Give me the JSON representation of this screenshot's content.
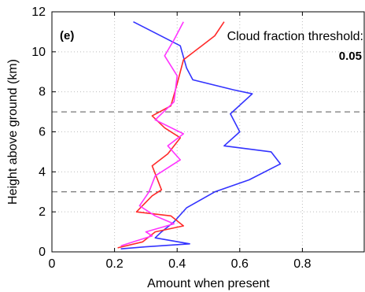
{
  "chart_data": {
    "type": "line",
    "panel_label": "(e)",
    "annotation_line1": "Cloud fraction threshold:",
    "annotation_value": "0.05",
    "xlabel": "Amount when present",
    "ylabel": "Height above ground (km)",
    "xlim": [
      0,
      1
    ],
    "ylim": [
      0,
      12
    ],
    "xticks": [
      0,
      0.2,
      0.4,
      0.6,
      0.8
    ],
    "xtick_labels": [
      "0",
      "0.2",
      "0.4",
      "0.6",
      "0.8"
    ],
    "yticks": [
      0,
      2,
      4,
      6,
      8,
      10,
      12
    ],
    "ytick_labels": [
      "0",
      "2",
      "4",
      "6",
      "8",
      "10",
      "12"
    ],
    "grid": true,
    "reference_lines_km": [
      3,
      7
    ],
    "series": [
      {
        "color": "#3333ff",
        "points": [
          [
            0.26,
            11.5
          ],
          [
            0.41,
            10.3
          ],
          [
            0.43,
            9.2
          ],
          [
            0.45,
            8.6
          ],
          [
            0.58,
            8.1
          ],
          [
            0.64,
            7.9
          ],
          [
            0.57,
            6.9
          ],
          [
            0.6,
            6.0
          ],
          [
            0.55,
            5.3
          ],
          [
            0.7,
            5.0
          ],
          [
            0.73,
            4.4
          ],
          [
            0.63,
            3.6
          ],
          [
            0.52,
            3.0
          ],
          [
            0.43,
            2.2
          ],
          [
            0.39,
            1.5
          ],
          [
            0.35,
            1.0
          ],
          [
            0.33,
            0.7
          ],
          [
            0.44,
            0.4
          ],
          [
            0.3,
            0.25
          ],
          [
            0.22,
            0.15
          ]
        ]
      },
      {
        "color": "#ff2a2a",
        "points": [
          [
            0.55,
            11.5
          ],
          [
            0.52,
            10.8
          ],
          [
            0.47,
            10.2
          ],
          [
            0.42,
            9.6
          ],
          [
            0.4,
            8.4
          ],
          [
            0.38,
            7.3
          ],
          [
            0.32,
            6.8
          ],
          [
            0.36,
            6.2
          ],
          [
            0.41,
            5.7
          ],
          [
            0.37,
            4.9
          ],
          [
            0.32,
            4.3
          ],
          [
            0.35,
            3.1
          ],
          [
            0.32,
            2.8
          ],
          [
            0.27,
            2.0
          ],
          [
            0.38,
            1.8
          ],
          [
            0.42,
            1.3
          ],
          [
            0.33,
            1.0
          ],
          [
            0.29,
            0.5
          ],
          [
            0.21,
            0.2
          ]
        ]
      },
      {
        "color": "#ff33ff",
        "points": [
          [
            0.42,
            11.5
          ],
          [
            0.39,
            10.6
          ],
          [
            0.36,
            9.8
          ],
          [
            0.4,
            8.8
          ],
          [
            0.39,
            7.5
          ],
          [
            0.33,
            6.6
          ],
          [
            0.42,
            5.9
          ],
          [
            0.37,
            5.3
          ],
          [
            0.41,
            4.6
          ],
          [
            0.33,
            3.8
          ],
          [
            0.31,
            3.0
          ],
          [
            0.28,
            2.3
          ],
          [
            0.33,
            1.8
          ],
          [
            0.39,
            1.4
          ],
          [
            0.3,
            1.0
          ],
          [
            0.32,
            0.8
          ],
          [
            0.26,
            0.5
          ],
          [
            0.22,
            0.3
          ]
        ]
      }
    ]
  }
}
